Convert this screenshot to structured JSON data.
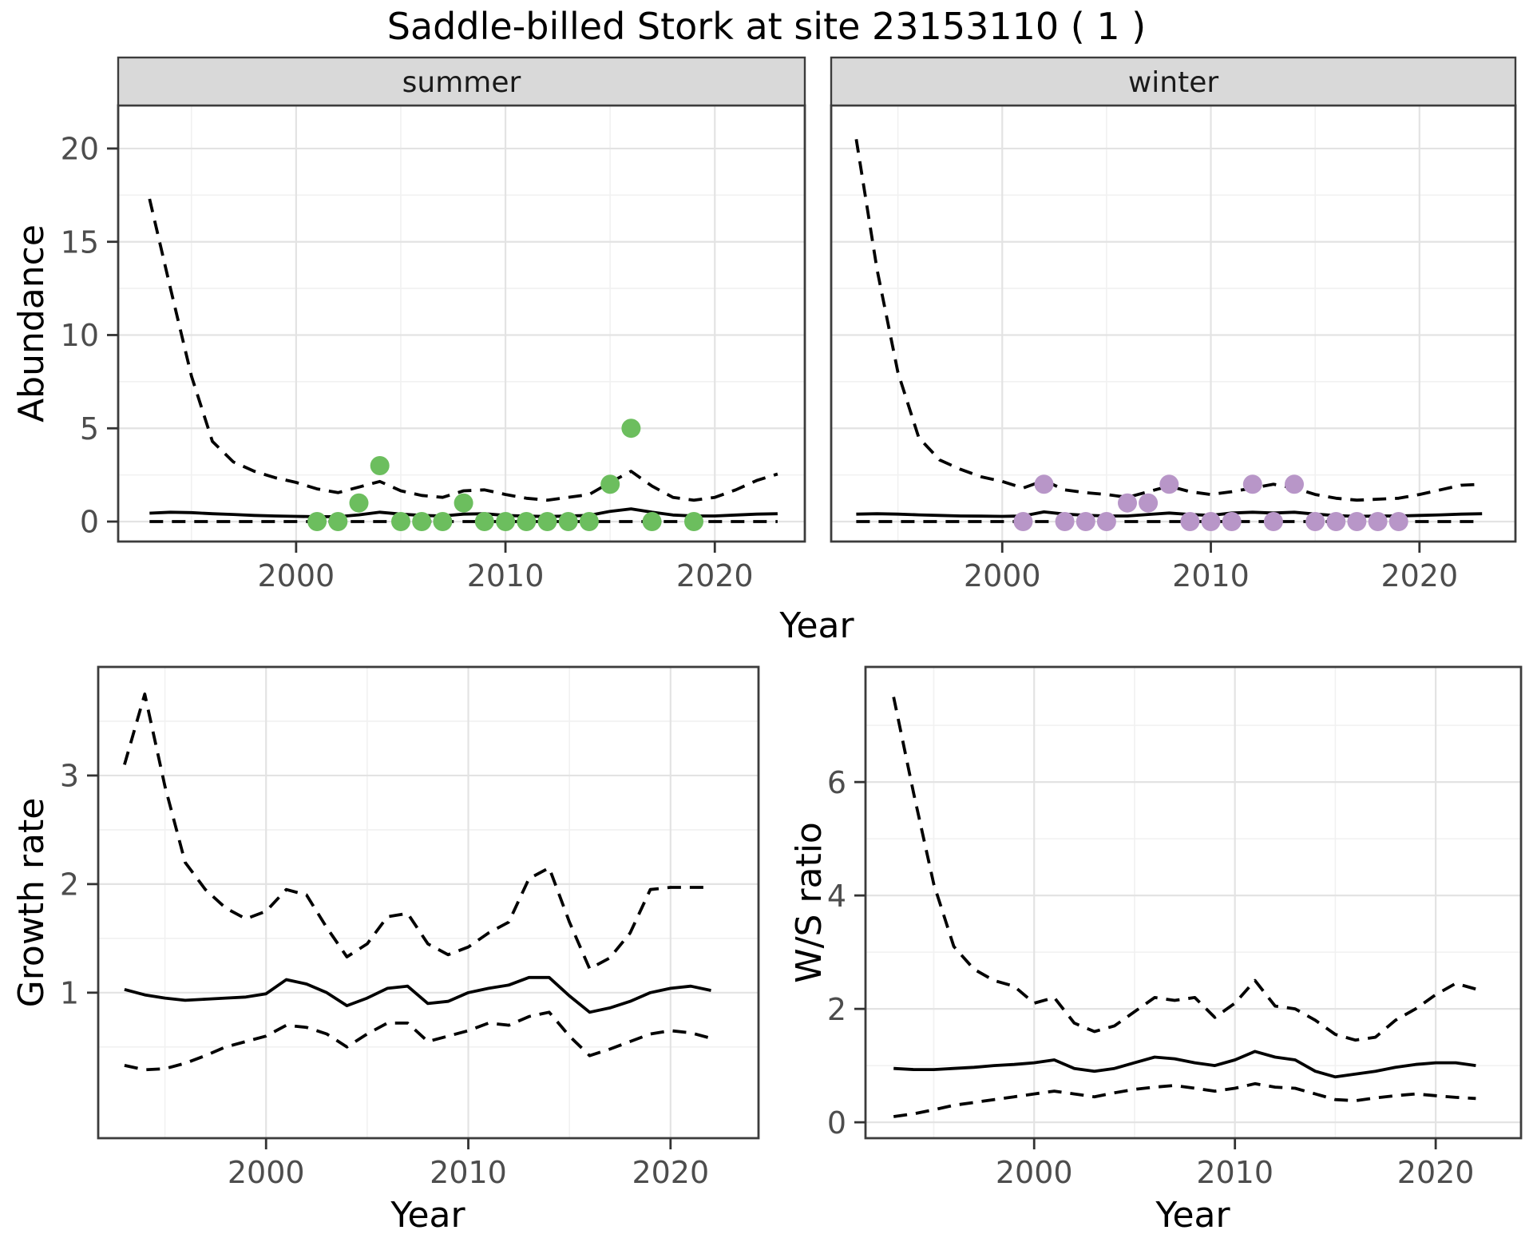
{
  "title": "Saddle-billed Stork at site 23153110 ( 1 )",
  "labels": {
    "y_abundance": "Abundance",
    "y_growth": "Growth rate",
    "y_ws": "W/S ratio",
    "x_top": "Year",
    "x_growth": "Year",
    "x_ws": "Year"
  },
  "colors": {
    "summer_point": "#6cbe5e",
    "winter_point": "#b896c8",
    "strip_bg": "#d9d9d9",
    "panel_border": "#3c3c3c",
    "grid_major": "#e3e3e3",
    "grid_minor": "#f1f1f1",
    "axis_text": "#4d4d4d",
    "line": "#000000"
  },
  "chart_data": [
    {
      "id": "abundance-summer",
      "type": "line+scatter",
      "facet_label": "summer",
      "xlabel": "Year",
      "ylabel": "Abundance",
      "xlim": [
        1991.5,
        2024.3
      ],
      "ylim": [
        -1.07,
        22.31
      ],
      "xticks": [
        2000,
        2010,
        2020
      ],
      "xticks_minor": [
        1995,
        2005,
        2015
      ],
      "yticks": [
        0,
        5,
        10,
        15,
        20
      ],
      "yticks_minor": [
        2.5,
        7.5,
        12.5,
        17.5
      ],
      "legend": "none",
      "grid": "on",
      "x": [
        1993,
        1994,
        1995,
        1996,
        1997,
        1998,
        1999,
        2000,
        2001,
        2002,
        2003,
        2004,
        2005,
        2006,
        2007,
        2008,
        2009,
        2010,
        2011,
        2012,
        2013,
        2014,
        2015,
        2016,
        2017,
        2018,
        2019,
        2020,
        2021,
        2022,
        2023
      ],
      "series": [
        {
          "name": "ci_upper",
          "style": "dashed",
          "values": [
            17.3,
            12.5,
            7.8,
            4.3,
            3.2,
            2.7,
            2.35,
            2.1,
            1.75,
            1.55,
            1.85,
            2.15,
            1.65,
            1.4,
            1.3,
            1.65,
            1.7,
            1.45,
            1.25,
            1.15,
            1.3,
            1.45,
            2.1,
            2.7,
            1.9,
            1.3,
            1.15,
            1.3,
            1.7,
            2.2,
            2.55
          ]
        },
        {
          "name": "mean",
          "style": "solid",
          "values": [
            0.45,
            0.5,
            0.48,
            0.42,
            0.38,
            0.33,
            0.3,
            0.28,
            0.26,
            0.26,
            0.36,
            0.5,
            0.4,
            0.33,
            0.3,
            0.4,
            0.42,
            0.33,
            0.29,
            0.27,
            0.3,
            0.33,
            0.55,
            0.68,
            0.5,
            0.35,
            0.3,
            0.3,
            0.35,
            0.4,
            0.42
          ]
        },
        {
          "name": "ci_lower",
          "style": "dashed",
          "values": [
            0,
            0,
            0,
            0,
            0,
            0,
            0,
            0,
            0,
            0,
            0,
            0,
            0,
            0,
            0,
            0,
            0,
            0,
            0,
            0,
            0,
            0,
            0,
            0,
            0,
            0,
            0,
            0,
            0,
            0,
            0
          ]
        }
      ],
      "points": {
        "name": "observed_counts",
        "color": "#6cbe5e",
        "data": [
          [
            2001,
            0
          ],
          [
            2002,
            0
          ],
          [
            2003,
            1
          ],
          [
            2004,
            3
          ],
          [
            2005,
            0
          ],
          [
            2006,
            0
          ],
          [
            2007,
            0
          ],
          [
            2008,
            1
          ],
          [
            2009,
            0
          ],
          [
            2010,
            0
          ],
          [
            2011,
            0
          ],
          [
            2012,
            0
          ],
          [
            2013,
            0
          ],
          [
            2014,
            0
          ],
          [
            2015,
            2
          ],
          [
            2016,
            5
          ],
          [
            2017,
            0
          ],
          [
            2019,
            0
          ]
        ]
      }
    },
    {
      "id": "abundance-winter",
      "type": "line+scatter",
      "facet_label": "winter",
      "xlabel": "Year",
      "ylabel": "Abundance",
      "xlim": [
        1991.8,
        2024.6
      ],
      "ylim": [
        -1.07,
        22.31
      ],
      "xticks": [
        2000,
        2010,
        2020
      ],
      "xticks_minor": [
        1995,
        2005,
        2015
      ],
      "yticks": [
        0,
        5,
        10,
        15,
        20
      ],
      "yticks_minor": [
        2.5,
        7.5,
        12.5,
        17.5
      ],
      "legend": "none",
      "grid": "on",
      "x": [
        1993,
        1994,
        1995,
        1996,
        1997,
        1998,
        1999,
        2000,
        2001,
        2002,
        2003,
        2004,
        2005,
        2006,
        2007,
        2008,
        2009,
        2010,
        2011,
        2012,
        2013,
        2014,
        2015,
        2016,
        2017,
        2018,
        2019,
        2020,
        2021,
        2022,
        2023
      ],
      "series": [
        {
          "name": "ci_upper",
          "style": "dashed",
          "values": [
            20.5,
            13.5,
            8.0,
            4.5,
            3.3,
            2.8,
            2.4,
            2.15,
            1.8,
            2.2,
            1.7,
            1.55,
            1.45,
            1.3,
            1.6,
            1.9,
            1.6,
            1.45,
            1.6,
            1.8,
            2.0,
            1.8,
            1.45,
            1.25,
            1.15,
            1.2,
            1.25,
            1.45,
            1.7,
            1.95,
            2.0
          ]
        },
        {
          "name": "mean",
          "style": "solid",
          "values": [
            0.4,
            0.42,
            0.4,
            0.36,
            0.33,
            0.3,
            0.29,
            0.28,
            0.3,
            0.52,
            0.4,
            0.34,
            0.3,
            0.3,
            0.38,
            0.46,
            0.38,
            0.33,
            0.46,
            0.5,
            0.46,
            0.5,
            0.4,
            0.32,
            0.28,
            0.3,
            0.3,
            0.33,
            0.36,
            0.4,
            0.42
          ]
        },
        {
          "name": "ci_lower",
          "style": "dashed",
          "values": [
            0,
            0,
            0,
            0,
            0,
            0,
            0,
            0,
            0,
            0,
            0,
            0,
            0,
            0,
            0,
            0,
            0,
            0,
            0,
            0,
            0,
            0,
            0,
            0,
            0,
            0,
            0,
            0,
            0,
            0,
            0
          ]
        }
      ],
      "points": {
        "name": "observed_counts",
        "color": "#b896c8",
        "data": [
          [
            2001,
            0
          ],
          [
            2002,
            2
          ],
          [
            2003,
            0
          ],
          [
            2004,
            0
          ],
          [
            2005,
            0
          ],
          [
            2006,
            1
          ],
          [
            2007,
            1
          ],
          [
            2008,
            2
          ],
          [
            2009,
            0
          ],
          [
            2010,
            0
          ],
          [
            2011,
            0
          ],
          [
            2012,
            2
          ],
          [
            2013,
            0
          ],
          [
            2014,
            2
          ],
          [
            2015,
            0
          ],
          [
            2016,
            0
          ],
          [
            2017,
            0
          ],
          [
            2018,
            0
          ],
          [
            2019,
            0
          ]
        ]
      }
    },
    {
      "id": "growth-rate",
      "type": "line",
      "facet_label": "",
      "xlabel": "Year",
      "ylabel": "Growth rate",
      "xlim": [
        1991.7,
        2024.35
      ],
      "ylim": [
        -0.34,
        4.0
      ],
      "xticks": [
        2000,
        2010,
        2020
      ],
      "xticks_minor": [
        1995,
        2005,
        2015
      ],
      "yticks": [
        1,
        2,
        3
      ],
      "yticks_minor": [
        0.5,
        1.5,
        2.5,
        3.5
      ],
      "legend": "none",
      "grid": "on",
      "x": [
        1993,
        1994,
        1995,
        1996,
        1997,
        1998,
        1999,
        2000,
        2001,
        2002,
        2003,
        2004,
        2005,
        2006,
        2007,
        2008,
        2009,
        2010,
        2011,
        2012,
        2013,
        2014,
        2015,
        2016,
        2017,
        2018,
        2019,
        2020,
        2021,
        2022
      ],
      "series": [
        {
          "name": "ci_upper",
          "style": "dashed",
          "values": [
            3.1,
            3.75,
            2.9,
            2.2,
            1.95,
            1.78,
            1.68,
            1.75,
            1.95,
            1.9,
            1.6,
            1.33,
            1.45,
            1.7,
            1.73,
            1.45,
            1.35,
            1.42,
            1.55,
            1.65,
            2.05,
            2.15,
            1.65,
            1.22,
            1.32,
            1.55,
            1.95,
            1.97,
            1.97,
            1.97
          ]
        },
        {
          "name": "mean",
          "style": "solid",
          "values": [
            1.03,
            0.98,
            0.95,
            0.93,
            0.94,
            0.95,
            0.96,
            0.99,
            1.12,
            1.08,
            1.0,
            0.88,
            0.95,
            1.04,
            1.06,
            0.9,
            0.92,
            1.0,
            1.04,
            1.07,
            1.14,
            1.14,
            0.97,
            0.82,
            0.86,
            0.92,
            1.0,
            1.04,
            1.06,
            1.02
          ]
        },
        {
          "name": "ci_lower",
          "style": "dashed",
          "values": [
            0.33,
            0.29,
            0.3,
            0.35,
            0.42,
            0.5,
            0.55,
            0.6,
            0.7,
            0.68,
            0.62,
            0.5,
            0.62,
            0.72,
            0.72,
            0.55,
            0.6,
            0.65,
            0.72,
            0.7,
            0.78,
            0.82,
            0.6,
            0.42,
            0.48,
            0.55,
            0.62,
            0.65,
            0.63,
            0.58
          ]
        }
      ]
    },
    {
      "id": "ws-ratio",
      "type": "line",
      "facet_label": "",
      "xlabel": "Year",
      "ylabel": "W/S ratio",
      "xlim": [
        1991.6,
        2024.25
      ],
      "ylim": [
        -0.28,
        8.03
      ],
      "xticks": [
        2000,
        2010,
        2020
      ],
      "xticks_minor": [
        1995,
        2005,
        2015
      ],
      "yticks": [
        0,
        2,
        4,
        6
      ],
      "yticks_minor": [
        1,
        3,
        5,
        7
      ],
      "legend": "none",
      "grid": "on",
      "x": [
        1993,
        1994,
        1995,
        1996,
        1997,
        1998,
        1999,
        2000,
        2001,
        2002,
        2003,
        2004,
        2005,
        2006,
        2007,
        2008,
        2009,
        2010,
        2011,
        2012,
        2013,
        2014,
        2015,
        2016,
        2017,
        2018,
        2019,
        2020,
        2021,
        2022
      ],
      "series": [
        {
          "name": "ci_upper",
          "style": "dashed",
          "values": [
            7.5,
            5.8,
            4.2,
            3.1,
            2.7,
            2.5,
            2.4,
            2.1,
            2.2,
            1.75,
            1.6,
            1.7,
            1.95,
            2.2,
            2.15,
            2.2,
            1.85,
            2.1,
            2.5,
            2.05,
            2.0,
            1.8,
            1.55,
            1.45,
            1.5,
            1.8,
            2.0,
            2.25,
            2.45,
            2.35
          ]
        },
        {
          "name": "mean",
          "style": "solid",
          "values": [
            0.95,
            0.93,
            0.93,
            0.95,
            0.97,
            1.0,
            1.02,
            1.05,
            1.1,
            0.95,
            0.9,
            0.95,
            1.05,
            1.15,
            1.12,
            1.05,
            1.0,
            1.1,
            1.25,
            1.15,
            1.1,
            0.9,
            0.8,
            0.85,
            0.9,
            0.97,
            1.02,
            1.05,
            1.05,
            1.0
          ]
        },
        {
          "name": "ci_lower",
          "style": "dashed",
          "values": [
            0.1,
            0.15,
            0.22,
            0.3,
            0.35,
            0.4,
            0.45,
            0.5,
            0.55,
            0.5,
            0.45,
            0.52,
            0.58,
            0.62,
            0.65,
            0.6,
            0.55,
            0.6,
            0.68,
            0.62,
            0.6,
            0.5,
            0.4,
            0.38,
            0.43,
            0.47,
            0.5,
            0.47,
            0.44,
            0.42
          ]
        }
      ]
    }
  ]
}
